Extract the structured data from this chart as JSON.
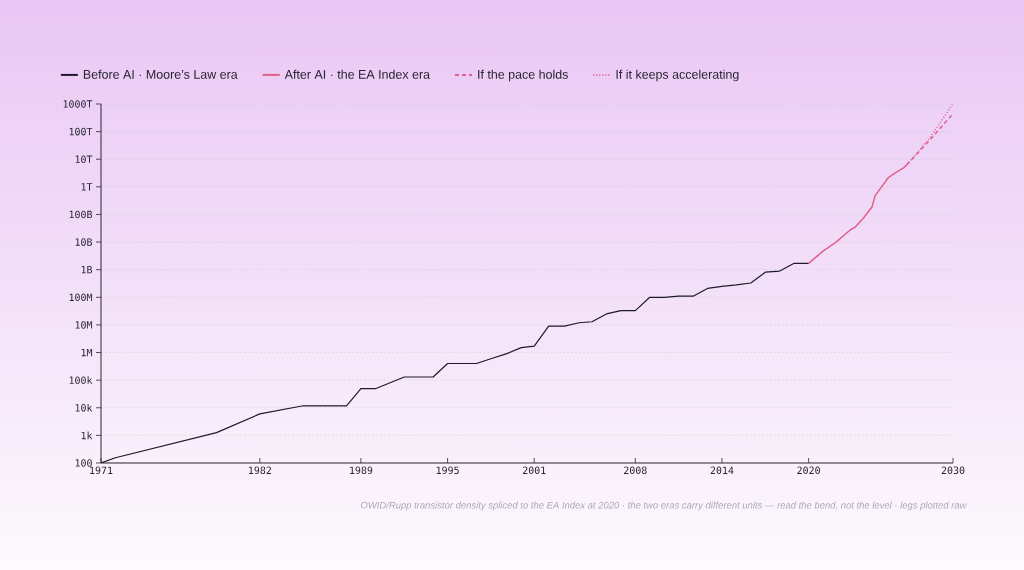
{
  "chart_data": {
    "type": "line",
    "xlim": [
      1971,
      2030
    ],
    "xticks": [
      1971,
      1982,
      1989,
      1995,
      2001,
      2008,
      2014,
      2020,
      2030
    ],
    "ylim": [
      100,
      1000000000000000.0
    ],
    "log": true,
    "yticks": [
      100,
      {
        "value": 1000.0,
        "label": "1k"
      },
      {
        "value": 10000.0,
        "label": "10k"
      },
      {
        "value": 100000.0,
        "label": "100k"
      },
      {
        "value": 1000000.0,
        "label": "1M"
      },
      {
        "value": 10000000.0,
        "label": "10M"
      },
      {
        "value": 100000000.0,
        "label": "100M"
      },
      {
        "value": 1000000000.0,
        "label": "1B"
      },
      {
        "value": 10000000000.0,
        "label": "10B"
      },
      {
        "value": 100000000000.0,
        "label": "100B"
      },
      {
        "value": 1000000000000.0,
        "label": "1T"
      },
      {
        "value": 10000000000000.0,
        "label": "10T"
      },
      {
        "value": 100000000000000.0,
        "label": "100T"
      },
      {
        "value": 1000000000000000.0,
        "label": "1000T"
      }
    ],
    "grid": "y",
    "legend": "top left",
    "series": [
      {
        "name": "Before AI · Moore’s Law era",
        "color": "#1e1a2a",
        "line_style": "solid",
        "x": [
          1971,
          1972,
          1979,
          1982,
          1985,
          1988,
          1989,
          1990,
          1992,
          1994,
          1995,
          1997,
          1998.1,
          1999.1,
          2000.1,
          2001,
          2002,
          2003.1,
          2004.1,
          2005,
          2006,
          2007,
          2008,
          2009,
          2010,
          2011,
          2012,
          2013,
          2014,
          2015,
          2016,
          2017,
          2018,
          2019,
          2020
        ],
        "values": [
          100,
          155,
          1260,
          6000,
          11800,
          11800,
          49000,
          49000,
          130000,
          130000,
          400000,
          400000,
          620000,
          910000,
          1500000.0,
          1700000.0,
          9100000.0,
          9100000.0,
          12000000.0,
          13000000.0,
          25000000.0,
          33000000.0,
          33000000.0,
          100000000.0,
          100000000.0,
          110000000.0,
          110000000.0,
          210000000.0,
          250000000.0,
          280000000.0,
          330000000.0,
          810000000.0,
          890000000.0,
          1700000000.0,
          1700000000.0
        ]
      },
      {
        "name": "After AI · the EA Index era",
        "color": "#e0608a",
        "line_style": "solid",
        "x": [
          2020,
          2021,
          2021.9,
          2022.9,
          2023.2,
          2023.8,
          2024.4,
          2024.6,
          2024.9,
          2025.5,
          2026.0,
          2026.6,
          2026.8
        ],
        "values": [
          1700000000.0,
          4700000000.0,
          10000000000.0,
          28000000000.0,
          34000000000.0,
          74000000000.0,
          190000000000.0,
          470000000000.0,
          780000000000.0,
          2100000000000.0,
          3200000000000.0,
          5000000000000.0,
          6300000000000.0
        ]
      },
      {
        "name": "If the pace holds",
        "color": "#e0608a",
        "line_style": "dashed",
        "x": [
          2026.8,
          2028.4,
          2030
        ],
        "values": [
          6300000000000.0,
          50000000000000.0,
          440000000000000.0
        ]
      },
      {
        "name": "If it keeps accelerating",
        "color": "#e0608a",
        "line_style": "dotted",
        "x": [
          2026.8,
          2028.4,
          2030
        ],
        "values": [
          6300000000000.0,
          60000000000000.0,
          1000000000000000.0
        ]
      }
    ],
    "annotations": [
      "OWID/Rupp transistor density spliced to the EA Index at 2020 · the two eras carry different units — read the bend, not the level · legs plotted raw"
    ]
  }
}
